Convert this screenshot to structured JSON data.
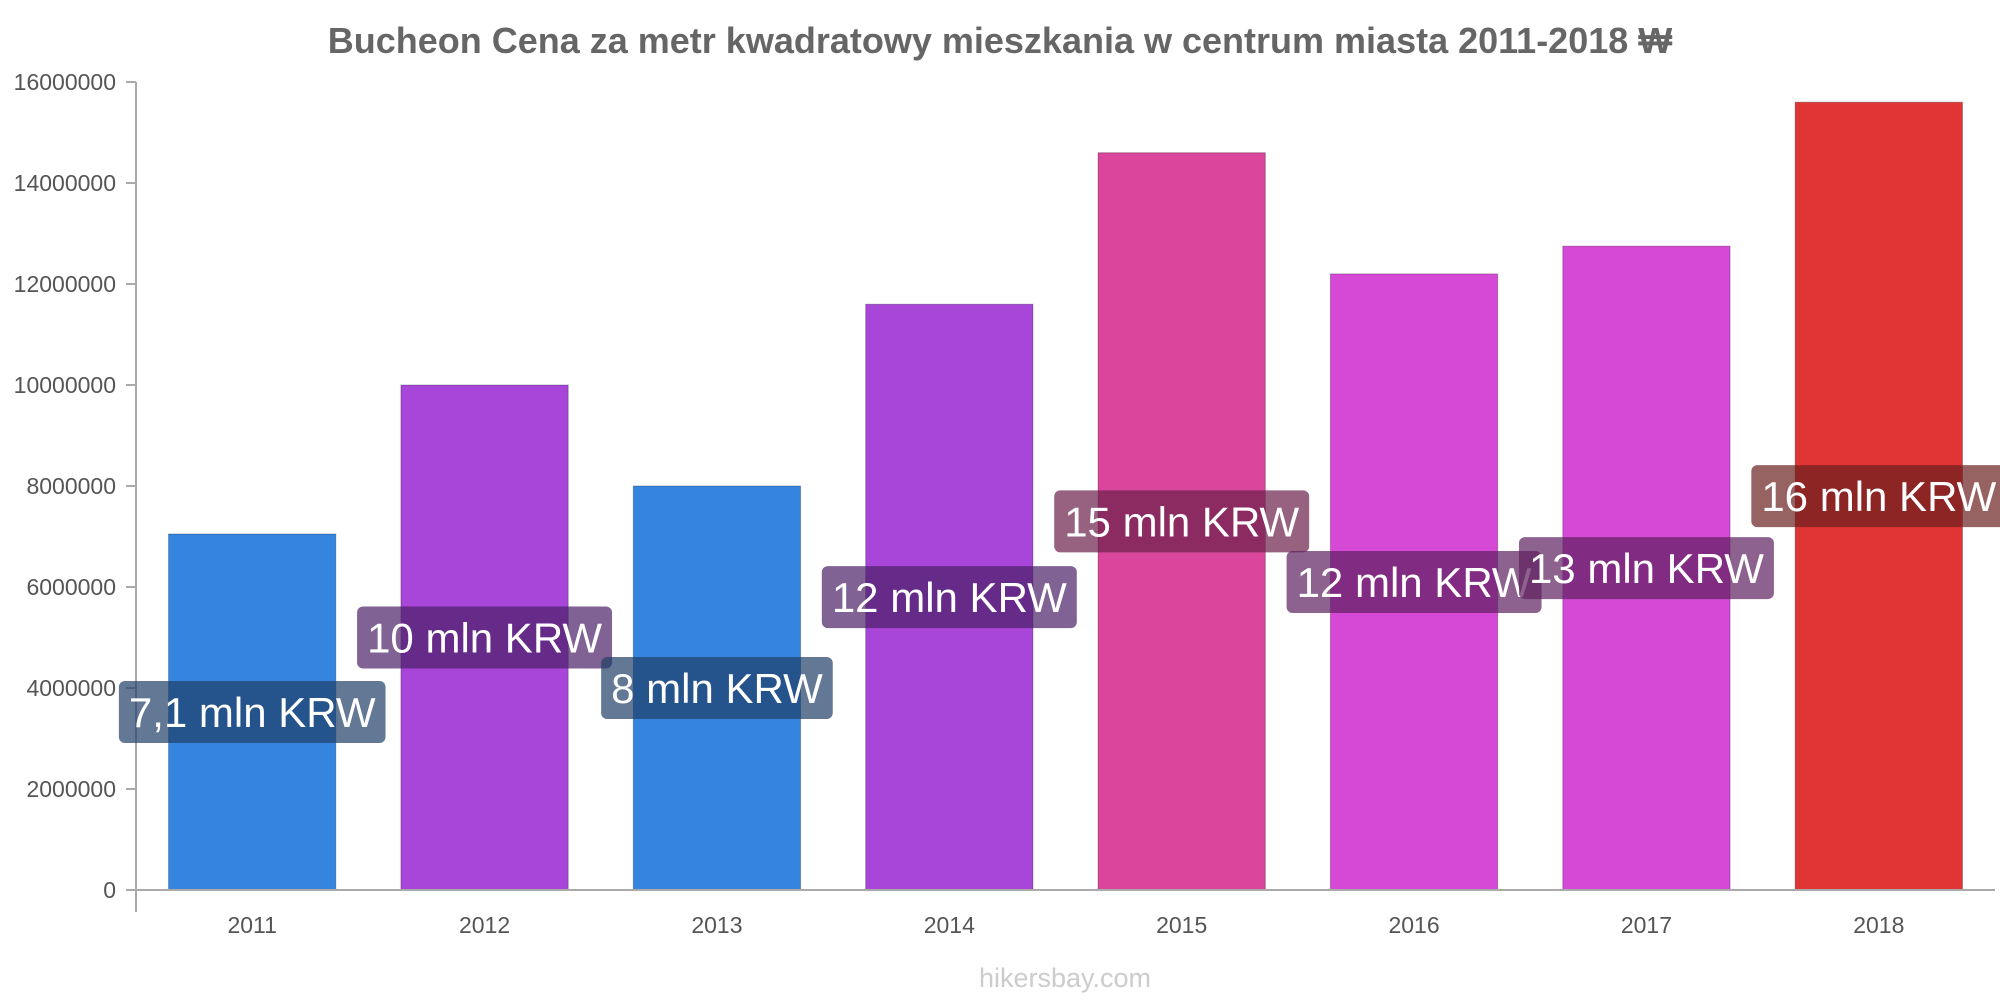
{
  "chart_data": {
    "type": "bar",
    "title": "Bucheon Cena za metr kwadratowy mieszkania w centrum miasta 2011-2018 ₩",
    "categories": [
      "2011",
      "2012",
      "2013",
      "2014",
      "2015",
      "2016",
      "2017",
      "2018"
    ],
    "values": [
      7050000,
      10000000,
      8000000,
      11600000,
      14600000,
      12200000,
      12750000,
      15600000
    ],
    "data_labels": [
      "7,1 mln KRW",
      "10 mln KRW",
      "8 mln KRW",
      "12 mln KRW",
      "15 mln KRW",
      "12 mln KRW",
      "13 mln KRW",
      "16 mln KRW"
    ],
    "bar_colors": [
      "#3584e0",
      "#a846d9",
      "#3584e0",
      "#a846d9",
      "#d9469b",
      "#d649d6",
      "#d649d6",
      "#e03535"
    ],
    "label_colors": [
      "#1f3f66",
      "#4a1f66",
      "#1f3f66",
      "#4a1f66",
      "#6b1f4a",
      "#5e1f5e",
      "#5e1f5e",
      "#6b1f1f"
    ],
    "ylim": [
      0,
      16000000
    ],
    "yticks": [
      0,
      2000000,
      4000000,
      6000000,
      8000000,
      10000000,
      12000000,
      14000000,
      16000000
    ],
    "ytick_labels": [
      "0",
      "2000000",
      "4000000",
      "6000000",
      "8000000",
      "10000000",
      "12000000",
      "14000000",
      "16000000"
    ],
    "xlabel": "",
    "ylabel": "",
    "grid": false,
    "legend": "none"
  },
  "watermark": "hikersbay.com"
}
